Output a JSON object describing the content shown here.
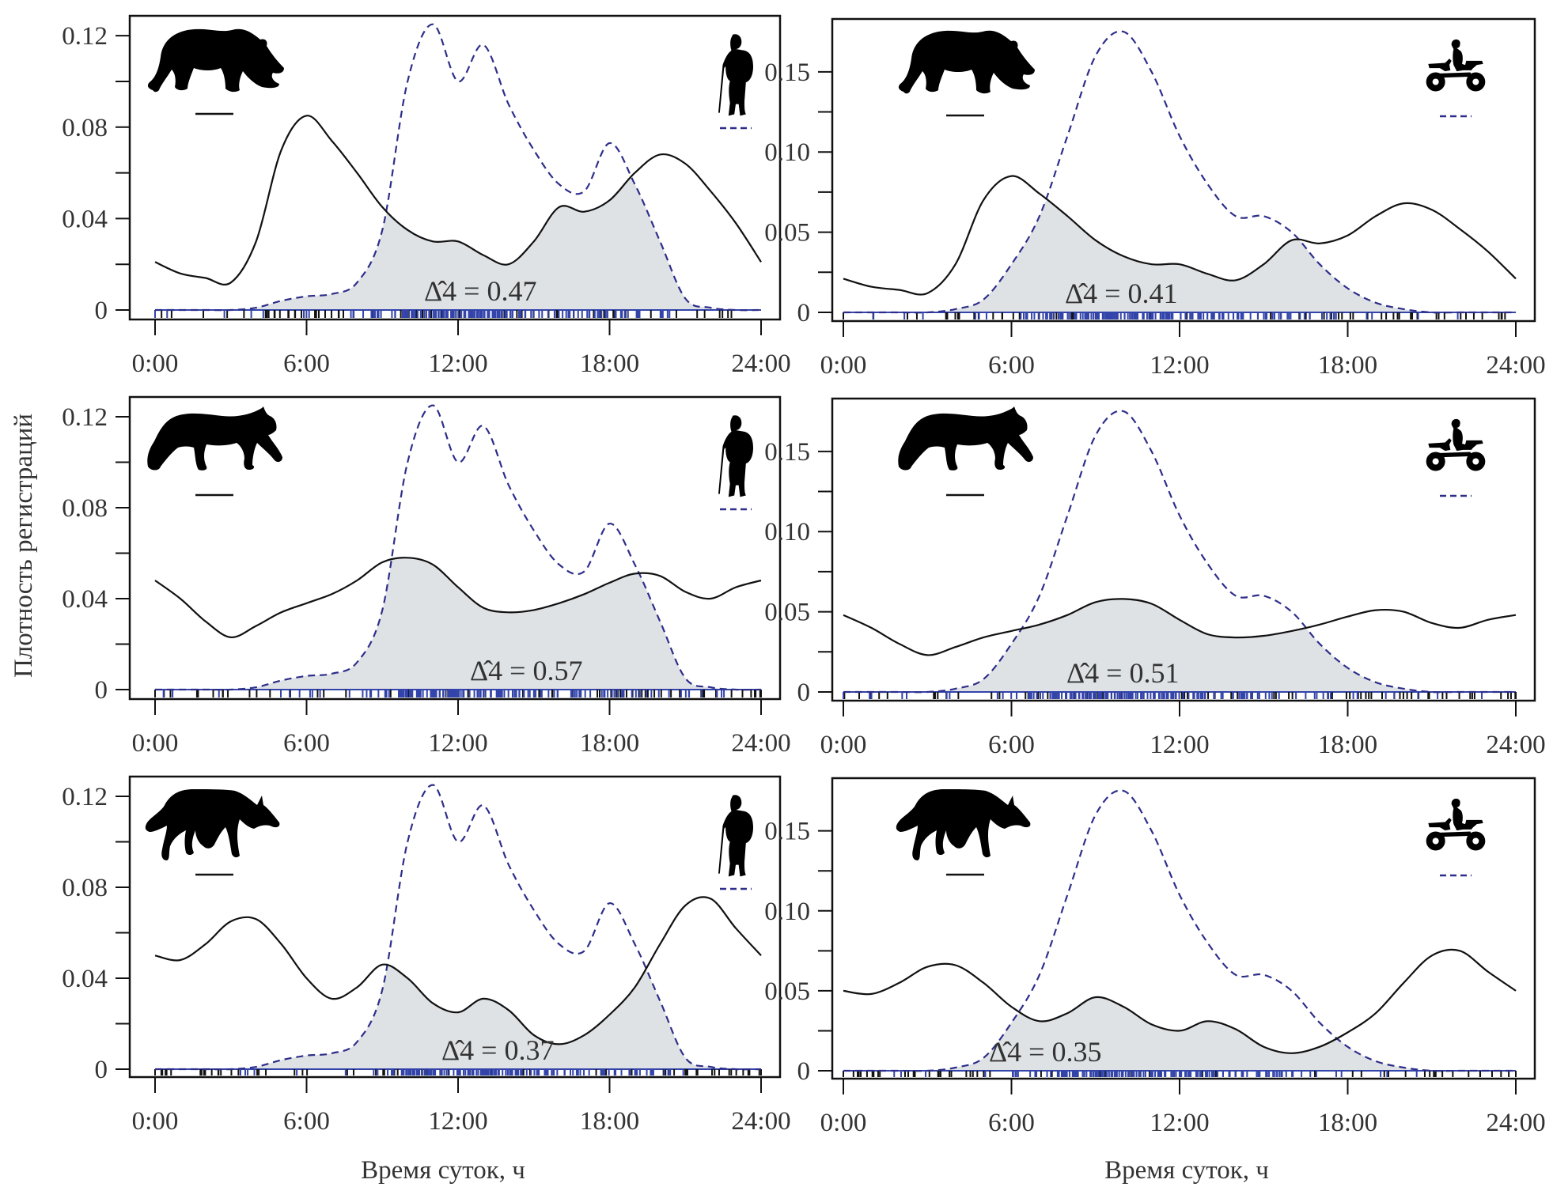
{
  "figure": {
    "ylabel": "Плотность регистраций",
    "xlabel": "Время суток, ч",
    "colors": {
      "animal_line": "#111111",
      "human_line": "#2e2e8a",
      "overlap_fill": "#dfe2e5",
      "rug_blue": "#3344aa",
      "rug_black": "#111111",
      "frame": "#111111"
    }
  },
  "chart_data": [
    {
      "type": "line",
      "panel": "bear-hikers",
      "animal": "bear",
      "human": "hiker",
      "overlap_label": "Δ̂4 = 0.47",
      "overlap": 0.47,
      "xlabel": "",
      "ylabel": "Плотность регистраций",
      "x_ticks": [
        "0:00",
        "6:00",
        "12:00",
        "18:00",
        "24:00"
      ],
      "y_ticks": [
        "0",
        "0.04",
        "0.08",
        "0.12"
      ],
      "y_tick_values": [
        0,
        0.04,
        0.08,
        0.12
      ],
      "xlim": [
        0,
        24
      ],
      "ylim": [
        0,
        0.128
      ],
      "x": [
        0,
        1,
        2,
        3,
        4,
        5,
        6,
        7,
        8,
        9,
        10,
        11,
        12,
        13,
        14,
        15,
        16,
        17,
        18,
        19,
        20,
        21,
        22,
        23,
        24
      ],
      "series": [
        {
          "name": "animal",
          "style": "solid",
          "values": [
            0.021,
            0.016,
            0.014,
            0.012,
            0.03,
            0.07,
            0.085,
            0.074,
            0.06,
            0.045,
            0.035,
            0.03,
            0.03,
            0.024,
            0.02,
            0.03,
            0.045,
            0.043,
            0.048,
            0.06,
            0.068,
            0.064,
            0.052,
            0.038,
            0.021
          ]
        },
        {
          "name": "human",
          "style": "dashed",
          "values": [
            0,
            0,
            0,
            0,
            0.001,
            0.004,
            0.006,
            0.007,
            0.012,
            0.035,
            0.1,
            0.125,
            0.1,
            0.116,
            0.09,
            0.07,
            0.055,
            0.052,
            0.073,
            0.055,
            0.03,
            0.005,
            0.001,
            0,
            0
          ]
        }
      ]
    },
    {
      "type": "line",
      "panel": "bear-atv",
      "animal": "bear",
      "human": "atv",
      "overlap_label": "Δ̂4 = 0.41",
      "overlap": 0.41,
      "xlabel": "",
      "ylabel": "",
      "x_ticks": [
        "0:00",
        "6:00",
        "12:00",
        "18:00",
        "24:00"
      ],
      "y_ticks": [
        "0",
        "0.05",
        "0.10",
        "0.15"
      ],
      "y_tick_values": [
        0,
        0.05,
        0.1,
        0.15
      ],
      "xlim": [
        0,
        24
      ],
      "ylim": [
        0,
        0.18
      ],
      "x": [
        0,
        1,
        2,
        3,
        4,
        5,
        6,
        7,
        8,
        9,
        10,
        11,
        12,
        13,
        14,
        15,
        16,
        17,
        18,
        19,
        20,
        21,
        22,
        23,
        24
      ],
      "series": [
        {
          "name": "animal",
          "style": "solid",
          "values": [
            0.021,
            0.016,
            0.014,
            0.012,
            0.03,
            0.07,
            0.085,
            0.074,
            0.06,
            0.045,
            0.035,
            0.03,
            0.03,
            0.024,
            0.02,
            0.03,
            0.045,
            0.043,
            0.048,
            0.06,
            0.068,
            0.064,
            0.052,
            0.038,
            0.021
          ]
        },
        {
          "name": "human",
          "style": "dashed",
          "values": [
            0,
            0,
            0,
            0,
            0.002,
            0.008,
            0.03,
            0.06,
            0.11,
            0.16,
            0.175,
            0.15,
            0.11,
            0.08,
            0.06,
            0.06,
            0.05,
            0.03,
            0.015,
            0.006,
            0.002,
            0,
            0,
            0,
            0
          ]
        }
      ]
    },
    {
      "type": "line",
      "panel": "lynx-hikers",
      "animal": "lynx",
      "human": "hiker",
      "overlap_label": "Δ̂4 = 0.57",
      "overlap": 0.57,
      "xlabel": "",
      "ylabel": "Плотность регистраций",
      "x_ticks": [
        "0:00",
        "6:00",
        "12:00",
        "18:00",
        "24:00"
      ],
      "y_ticks": [
        "0",
        "0.04",
        "0.08",
        "0.12"
      ],
      "y_tick_values": [
        0,
        0.04,
        0.08,
        0.12
      ],
      "xlim": [
        0,
        24
      ],
      "ylim": [
        0,
        0.128
      ],
      "x": [
        0,
        1,
        2,
        3,
        4,
        5,
        6,
        7,
        8,
        9,
        10,
        11,
        12,
        13,
        14,
        15,
        16,
        17,
        18,
        19,
        20,
        21,
        22,
        23,
        24
      ],
      "series": [
        {
          "name": "animal",
          "style": "solid",
          "values": [
            0.048,
            0.04,
            0.03,
            0.023,
            0.028,
            0.034,
            0.038,
            0.042,
            0.048,
            0.056,
            0.058,
            0.055,
            0.045,
            0.036,
            0.034,
            0.035,
            0.038,
            0.042,
            0.047,
            0.051,
            0.05,
            0.043,
            0.04,
            0.045,
            0.048
          ]
        },
        {
          "name": "human",
          "style": "dashed",
          "values": [
            0,
            0,
            0,
            0,
            0.001,
            0.004,
            0.006,
            0.007,
            0.012,
            0.035,
            0.1,
            0.125,
            0.1,
            0.116,
            0.09,
            0.07,
            0.055,
            0.052,
            0.073,
            0.055,
            0.03,
            0.005,
            0.001,
            0,
            0
          ]
        }
      ]
    },
    {
      "type": "line",
      "panel": "lynx-atv",
      "animal": "lynx",
      "human": "atv",
      "overlap_label": "Δ̂4 = 0.51",
      "overlap": 0.51,
      "xlabel": "",
      "ylabel": "",
      "x_ticks": [
        "0:00",
        "6:00",
        "12:00",
        "18:00",
        "24:00"
      ],
      "y_ticks": [
        "0",
        "0.05",
        "0.10",
        "0.15"
      ],
      "y_tick_values": [
        0,
        0.05,
        0.1,
        0.15
      ],
      "xlim": [
        0,
        24
      ],
      "ylim": [
        0,
        0.18
      ],
      "x": [
        0,
        1,
        2,
        3,
        4,
        5,
        6,
        7,
        8,
        9,
        10,
        11,
        12,
        13,
        14,
        15,
        16,
        17,
        18,
        19,
        20,
        21,
        22,
        23,
        24
      ],
      "series": [
        {
          "name": "animal",
          "style": "solid",
          "values": [
            0.048,
            0.04,
            0.03,
            0.023,
            0.028,
            0.034,
            0.038,
            0.042,
            0.048,
            0.056,
            0.058,
            0.055,
            0.045,
            0.036,
            0.034,
            0.035,
            0.038,
            0.042,
            0.047,
            0.051,
            0.05,
            0.043,
            0.04,
            0.045,
            0.048
          ]
        },
        {
          "name": "human",
          "style": "dashed",
          "values": [
            0,
            0,
            0,
            0,
            0.002,
            0.008,
            0.03,
            0.06,
            0.11,
            0.16,
            0.175,
            0.15,
            0.11,
            0.08,
            0.06,
            0.06,
            0.05,
            0.03,
            0.015,
            0.006,
            0.002,
            0,
            0,
            0,
            0
          ]
        }
      ]
    },
    {
      "type": "line",
      "panel": "wolf-hikers",
      "animal": "wolf",
      "human": "hiker",
      "overlap_label": "Δ̂4 = 0.37",
      "overlap": 0.37,
      "xlabel": "Время суток, ч",
      "ylabel": "Плотность регистраций",
      "x_ticks": [
        "0:00",
        "6:00",
        "12:00",
        "18:00",
        "24:00"
      ],
      "y_ticks": [
        "0",
        "0.04",
        "0.08",
        "0.12"
      ],
      "y_tick_values": [
        0,
        0.04,
        0.08,
        0.12
      ],
      "xlim": [
        0,
        24
      ],
      "ylim": [
        0,
        0.128
      ],
      "x": [
        0,
        1,
        2,
        3,
        4,
        5,
        6,
        7,
        8,
        9,
        10,
        11,
        12,
        13,
        14,
        15,
        16,
        17,
        18,
        19,
        20,
        21,
        22,
        23,
        24
      ],
      "series": [
        {
          "name": "animal",
          "style": "solid",
          "values": [
            0.05,
            0.048,
            0.055,
            0.065,
            0.066,
            0.055,
            0.04,
            0.031,
            0.036,
            0.046,
            0.04,
            0.029,
            0.025,
            0.031,
            0.026,
            0.015,
            0.011,
            0.015,
            0.024,
            0.036,
            0.055,
            0.072,
            0.075,
            0.062,
            0.05
          ]
        },
        {
          "name": "human",
          "style": "dashed",
          "values": [
            0,
            0,
            0,
            0,
            0.001,
            0.004,
            0.006,
            0.007,
            0.012,
            0.035,
            0.1,
            0.125,
            0.1,
            0.116,
            0.09,
            0.07,
            0.055,
            0.052,
            0.073,
            0.055,
            0.03,
            0.005,
            0.001,
            0,
            0
          ]
        }
      ]
    },
    {
      "type": "line",
      "panel": "wolf-atv",
      "animal": "wolf",
      "human": "atv",
      "overlap_label": "Δ̂4 = 0.35",
      "overlap": 0.35,
      "xlabel": "Время суток, ч",
      "ylabel": "",
      "x_ticks": [
        "0:00",
        "6:00",
        "12:00",
        "18:00",
        "24:00"
      ],
      "y_ticks": [
        "0",
        "0.05",
        "0.10",
        "0.15"
      ],
      "y_tick_values": [
        0,
        0.05,
        0.1,
        0.15
      ],
      "xlim": [
        0,
        24
      ],
      "ylim": [
        0,
        0.18
      ],
      "x": [
        0,
        1,
        2,
        3,
        4,
        5,
        6,
        7,
        8,
        9,
        10,
        11,
        12,
        13,
        14,
        15,
        16,
        17,
        18,
        19,
        20,
        21,
        22,
        23,
        24
      ],
      "series": [
        {
          "name": "animal",
          "style": "solid",
          "values": [
            0.05,
            0.048,
            0.055,
            0.065,
            0.066,
            0.055,
            0.04,
            0.031,
            0.036,
            0.046,
            0.04,
            0.029,
            0.025,
            0.031,
            0.026,
            0.015,
            0.011,
            0.015,
            0.024,
            0.036,
            0.055,
            0.072,
            0.075,
            0.062,
            0.05
          ]
        },
        {
          "name": "human",
          "style": "dashed",
          "values": [
            0,
            0,
            0,
            0,
            0.002,
            0.008,
            0.03,
            0.06,
            0.11,
            0.16,
            0.175,
            0.15,
            0.11,
            0.08,
            0.06,
            0.06,
            0.05,
            0.03,
            0.015,
            0.006,
            0.002,
            0,
            0,
            0,
            0
          ]
        }
      ]
    }
  ]
}
